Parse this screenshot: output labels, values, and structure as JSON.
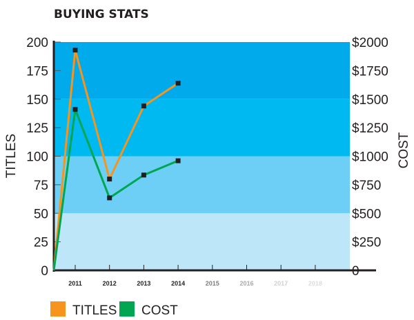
{
  "chart_data": {
    "type": "line",
    "title": "BUYING STATS",
    "ylabel": "TITLES",
    "y2label": "COST",
    "ylim": [
      0,
      200
    ],
    "y2lim": [
      0,
      2000
    ],
    "yticks": [
      "0",
      "25",
      "50",
      "75",
      "100",
      "125",
      "150",
      "175",
      "200"
    ],
    "y2ticks": [
      "0",
      "$250",
      "$500",
      "$750",
      "$1000",
      "$1250",
      "$1500",
      "$1750",
      "$2000"
    ],
    "xticks": [
      {
        "label": "2011",
        "color": "#231f20"
      },
      {
        "label": "2012",
        "color": "#231f20"
      },
      {
        "label": "2013",
        "color": "#231f20"
      },
      {
        "label": "2014",
        "color": "#231f20"
      },
      {
        "label": "2015",
        "color": "#7d7d7d"
      },
      {
        "label": "2016",
        "color": "#a9a9a9"
      },
      {
        "label": "2017",
        "color": "#cfcfcf"
      },
      {
        "label": "2018",
        "color": "#dcdcdc"
      }
    ],
    "bands": [
      {
        "from": 0,
        "to": 50,
        "color": "#bde6f8"
      },
      {
        "from": 50,
        "to": 100,
        "color": "#6dcff6"
      },
      {
        "from": 100,
        "to": 150,
        "color": "#00b9f0"
      },
      {
        "from": 150,
        "to": 200,
        "color": "#00aaeb"
      }
    ],
    "series": [
      {
        "name": "TITLES",
        "color": "#f7941d",
        "axis": "left",
        "start": 0,
        "values": [
          193,
          80,
          144,
          164
        ]
      },
      {
        "name": "COST",
        "color": "#00a651",
        "axis": "right",
        "start": 0,
        "values": [
          1410,
          635,
          835,
          960
        ]
      }
    ],
    "grid": false,
    "legend": "bottom-left"
  }
}
